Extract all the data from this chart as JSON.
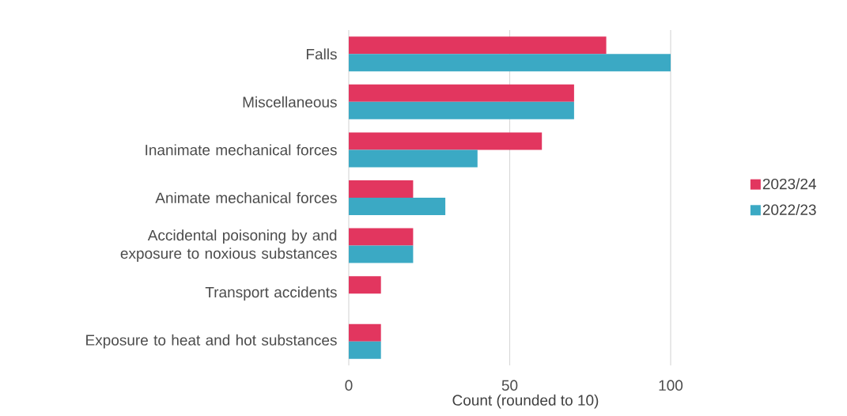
{
  "chart_data": {
    "type": "bar",
    "orientation": "horizontal",
    "xlabel": "Count (rounded to 10)",
    "categories": [
      "Falls",
      "Miscellaneous",
      "Inanimate mechanical forces",
      "Animate mechanical forces",
      "Accidental poisoning by and exposure to noxious substances",
      "Transport accidents",
      "Exposure to heat and hot substances"
    ],
    "series": [
      {
        "name": "2023/24",
        "color": "#e2365f",
        "values": [
          80,
          70,
          60,
          20,
          20,
          10,
          10
        ]
      },
      {
        "name": "2022/23",
        "color": "#3ba9c4",
        "values": [
          100,
          70,
          40,
          30,
          20,
          null,
          10
        ]
      }
    ],
    "xlim": [
      0,
      100
    ],
    "xticks": [
      0,
      50,
      100
    ],
    "grid": "x",
    "legend": "right"
  }
}
